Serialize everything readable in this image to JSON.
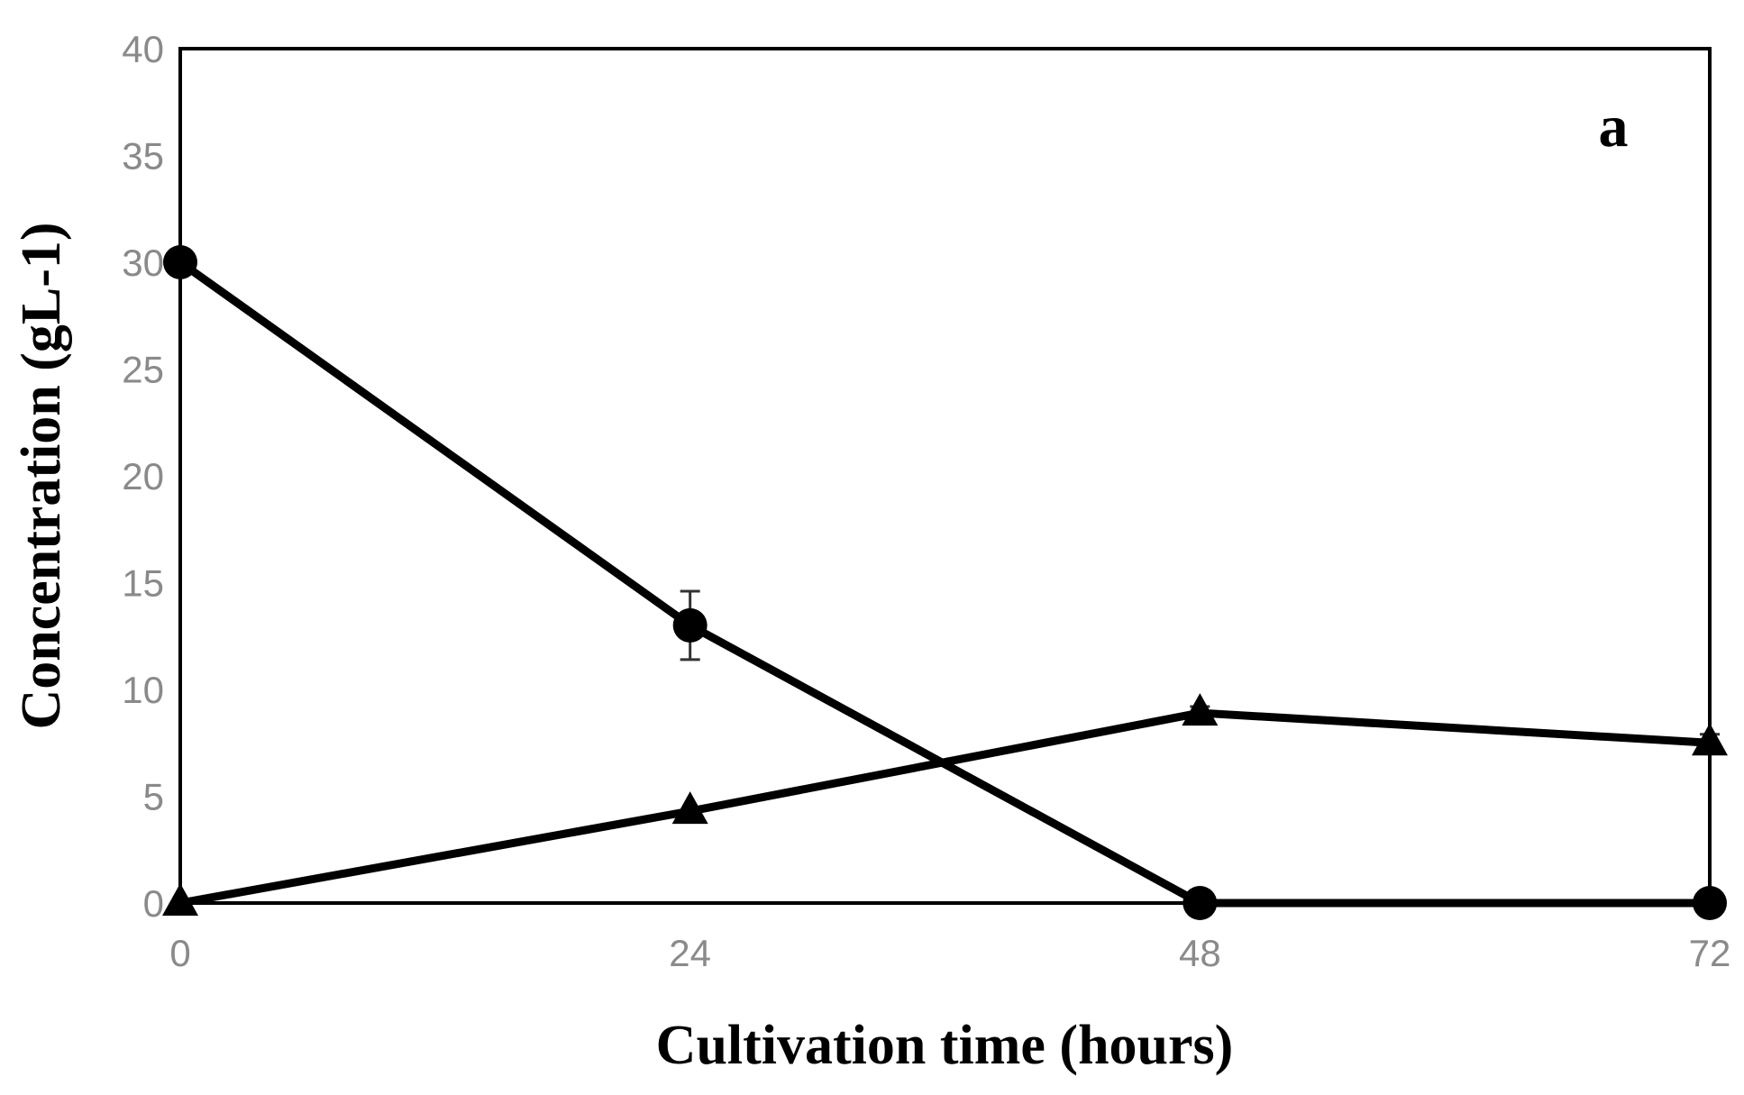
{
  "chart_data": {
    "type": "line",
    "panel_label": "a",
    "xlabel": "Cultivation time (hours)",
    "ylabel": "Concentration (gL-1)",
    "x": [
      0,
      24,
      48,
      72
    ],
    "x_ticks": [
      "0",
      "24",
      "48",
      "72"
    ],
    "y_ticks": [
      "0",
      "5",
      "10",
      "15",
      "20",
      "25",
      "30",
      "35",
      "40"
    ],
    "xlim": [
      0,
      72
    ],
    "ylim": [
      0,
      40
    ],
    "grid": false,
    "legend": "none",
    "series": [
      {
        "marker": "circle",
        "values": [
          30,
          13,
          0,
          0
        ],
        "error": [
          0,
          1.6,
          0,
          0
        ]
      },
      {
        "marker": "triangle",
        "values": [
          0,
          4.3,
          8.9,
          7.5
        ],
        "error": [
          0,
          0,
          0.3,
          0.4
        ]
      }
    ],
    "colors": {
      "line": "#000000",
      "tick_label": "#8a8a8a",
      "frame": "#000000"
    }
  }
}
